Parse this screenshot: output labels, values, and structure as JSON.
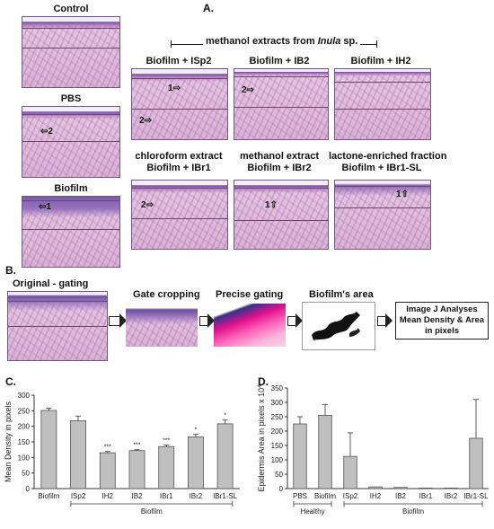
{
  "panels": {
    "A": "A.",
    "B": "B.",
    "C": "C.",
    "D": "D."
  },
  "panelA": {
    "control": "Control",
    "pbs": "PBS",
    "biofilm": "Biofilm",
    "methanol_header_pre": "methanol extracts from ",
    "methanol_header_italic": "Inula",
    "methanol_header_post": " sp.",
    "isp2": "Biofilm + ISp2",
    "ib2": "Biofilm + IB2",
    "ih2": "Biofilm + IH2",
    "chloroform_line1": "chloroform extract",
    "chloroform_line2": "Biofilm + IBr1",
    "methanol_line1": "methanol extract",
    "methanol_line2": "Biofilm + IBr2",
    "lactone_line1": "lactone-enriched fraction",
    "lactone_line2": "Biofilm + IBr1-SL",
    "marker1": "1",
    "marker2": "2"
  },
  "panelB": {
    "original": "Original - gating",
    "gate_cropping": "Gate cropping",
    "precise_gating": "Precise gating",
    "biofilm_area": "Biofilm's area",
    "result_line1": "Image J Analyses",
    "result_line2": "Mean Density & Area",
    "result_line3": "in pixels"
  },
  "chart_data": [
    {
      "type": "bar",
      "ylabel": "Mean Density in pixels",
      "ylim": [
        0,
        300
      ],
      "yticks": [
        0,
        50,
        100,
        150,
        200,
        250,
        300
      ],
      "categories": [
        "Biofilm",
        "ISp2",
        "IH2",
        "IB2",
        "IBr1",
        "IBr2",
        "IBr1-SL"
      ],
      "values": [
        251,
        218,
        115,
        122,
        135,
        166,
        208
      ],
      "errors": [
        7,
        15,
        4,
        3,
        5,
        8,
        12
      ],
      "significance": [
        "",
        "",
        "***",
        "***",
        "***",
        "*",
        "*"
      ],
      "group_label": "Biofilm",
      "bar_color": "#bfbfbf"
    },
    {
      "type": "bar",
      "ylabel": "Epidermis Area in pixels x 10^4",
      "ylim": [
        0,
        350
      ],
      "yticks": [
        0,
        50,
        100,
        150,
        200,
        250,
        300,
        350
      ],
      "categories": [
        "PBS",
        "Biofilm",
        "ISp2",
        "IH2",
        "IB2",
        "IBr1",
        "IBr2",
        "IBr1-SL"
      ],
      "values": [
        225,
        255,
        112,
        6,
        4,
        2,
        2,
        175
      ],
      "errors": [
        25,
        38,
        82,
        0,
        0,
        0,
        0,
        135
      ],
      "group_labels": [
        {
          "label": "Healthy",
          "from": 0,
          "to": 1
        },
        {
          "label": "Biofilm",
          "from": 2,
          "to": 7
        }
      ],
      "bar_color": "#bfbfbf"
    }
  ]
}
